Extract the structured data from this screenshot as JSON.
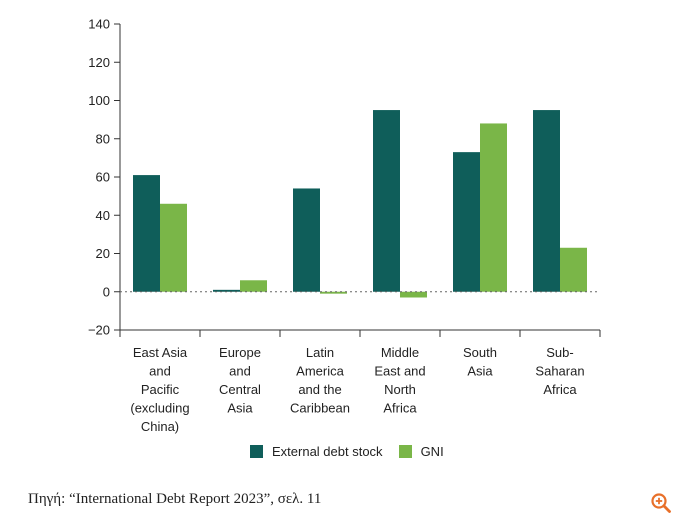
{
  "chart_data": {
    "type": "bar",
    "categories": [
      [
        "East Asia",
        "and",
        "Pacific",
        "(excluding",
        "China)"
      ],
      [
        "Europe",
        "and",
        "Central",
        "Asia"
      ],
      [
        "Latin",
        "America",
        "and the",
        "Caribbean"
      ],
      [
        "Middle",
        "East and",
        "North",
        "Africa"
      ],
      [
        "South",
        "Asia"
      ],
      [
        "Sub-",
        "Saharan",
        "Africa"
      ]
    ],
    "series": [
      {
        "name": "External debt stock",
        "color": "#0f5e5a",
        "values": [
          61,
          1,
          54,
          95,
          73,
          95
        ]
      },
      {
        "name": "GNI",
        "color": "#7ab648",
        "values": [
          46,
          6,
          -1,
          -3,
          88,
          23
        ]
      }
    ],
    "ylim": [
      -20,
      140
    ],
    "yticks": [
      -20,
      0,
      20,
      40,
      60,
      80,
      100,
      120,
      140
    ],
    "ytick_labels": [
      "−20",
      "0",
      "20",
      "40",
      "60",
      "80",
      "100",
      "120",
      "140"
    ],
    "zero_line": "dotted",
    "grid": false,
    "legend": "bottom"
  },
  "source": "Πηγή: “International Debt Report 2023”, σελ. 11",
  "zoom_icon": "zoom-in-icon",
  "zoom_color": "#e8702a"
}
